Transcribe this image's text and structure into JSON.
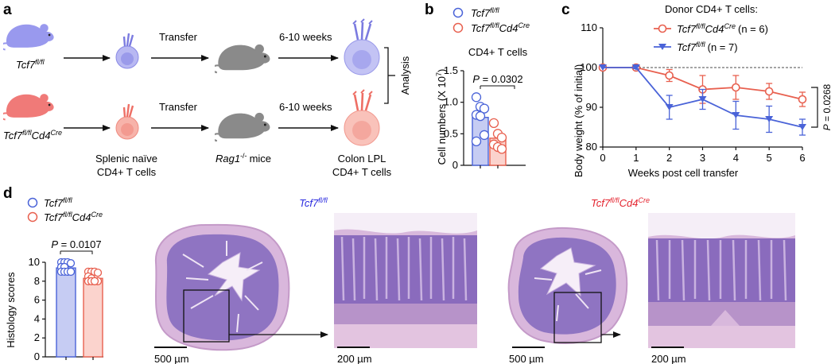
{
  "panel_labels": {
    "a": "a",
    "b": "b",
    "c": "c",
    "d": "d"
  },
  "panel_a": {
    "genotype_fl": "Tcf7",
    "genotype_fl_sup": "fl/fl",
    "genotype_cre": "Tcf7",
    "genotype_cre_sup": "fl/fl",
    "genotype_cre_gene": "Cd4",
    "genotype_cre_gene_sup": "Cre",
    "transfer_label_1": "Transfer",
    "transfer_label_2": "Transfer",
    "time_label_1": "6-10 weeks",
    "time_label_2": "6-10 weeks",
    "splenic_line1": "Splenic naïve",
    "splenic_line2": "CD4+ T cells",
    "rag_gene": "Rag1",
    "rag_sup": "-/-",
    "rag_suffix": "mice",
    "colon_line1": "Colon LPL",
    "colon_line2": "CD4+ T cells",
    "analysis": "Analysis"
  },
  "colors": {
    "blue": "#4a63d8",
    "red": "#e8604f",
    "mouse_blue": "#9999ee",
    "mouse_red": "#f07a78",
    "mouse_gray": "#8a8a8a",
    "tissue": "#c7a6d6",
    "tissue_dark": "#7d5aa8"
  },
  "panel_b": {
    "legend_fl": "Tcf7",
    "legend_fl_sup": "fl/fl",
    "legend_cre": "Tcf7",
    "legend_cre_sup": "fl/fl",
    "legend_cre_gene": "Cd4",
    "legend_cre_gene_sup": "Cre",
    "subtitle": "CD4+ T cells",
    "p_value": "P = 0.0302",
    "ylabel": "Cell numbers (X 10",
    "ylabel_sup": "7",
    "ylabel_end": ")"
  },
  "panel_c": {
    "title": "Donor CD4+ T cells:",
    "legend_cre": "Tcf7",
    "legend_cre_sup": "fl/fl",
    "legend_cre_gene": "Cd4",
    "legend_cre_gene_sup": "Cre",
    "legend_cre_n": "(n = 6)",
    "legend_fl": "Tcf7",
    "legend_fl_sup": "fl/fl",
    "legend_fl_n": "(n = 7)",
    "xlabel": "Weeks post cell transfer",
    "ylabel": "Body weight (% of initial)",
    "p_value": "P = 0.0268"
  },
  "panel_d": {
    "legend_fl": "Tcf7",
    "legend_fl_sup": "fl/fl",
    "legend_cre": "Tcf7",
    "legend_cre_sup": "fl/fl",
    "legend_cre_gene": "Cd4",
    "legend_cre_gene_sup": "Cre",
    "p_value": "P = 0.0107",
    "ylabel": "Histology scores",
    "title_fl": "Tcf7",
    "title_fl_sup": "fl/fl",
    "title_cre": "Tcf7",
    "title_cre_sup": "fl/fl",
    "title_cre_gene": "Cd4",
    "title_cre_gene_sup": "Cre",
    "scale_1": "500 µm",
    "scale_2": "200 µm",
    "scale_3": "500 µm",
    "scale_4": "200 µm"
  },
  "chart_data": [
    {
      "id": "b",
      "type": "bar",
      "title": "CD4+ T cells",
      "ylabel": "Cell numbers (X 10^7)",
      "ylim": [
        0,
        1.5
      ],
      "yticks": [
        0,
        0.5,
        1.0,
        1.5
      ],
      "ytick_labels": [
        "0",
        "0.5",
        "1.0",
        "1.5"
      ],
      "categories": [
        "Tcf7 fl/fl",
        "Tcf7 fl/fl Cd4 Cre"
      ],
      "series": [
        {
          "name": "Tcf7 fl/fl",
          "mean": 0.76,
          "sem": 0.09,
          "points": [
            1.08,
            0.93,
            0.9,
            0.8,
            0.78,
            0.48,
            0.38
          ]
        },
        {
          "name": "Tcf7 fl/fl Cd4 Cre",
          "mean": 0.43,
          "sem": 0.08,
          "points": [
            0.67,
            0.5,
            0.44,
            0.33,
            0.29,
            0.26
          ]
        }
      ]
    },
    {
      "id": "c",
      "type": "line",
      "xlabel": "Weeks post cell transfer",
      "ylabel": "Body weight (% of initial)",
      "xlim": [
        0,
        6
      ],
      "ylim": [
        80,
        110
      ],
      "xticks": [
        0,
        1,
        2,
        3,
        4,
        5,
        6
      ],
      "xtick_labels": [
        "0",
        "1",
        "2",
        "3",
        "4",
        "5",
        "6"
      ],
      "yticks": [
        80,
        90,
        100,
        110
      ],
      "ytick_labels": [
        "80",
        "90",
        "100",
        "110"
      ],
      "reference_line": 100,
      "x": [
        0,
        1,
        2,
        3,
        4,
        5,
        6
      ],
      "series": [
        {
          "name": "Tcf7 fl/fl Cd4 Cre (n = 6)",
          "values": [
            100,
            100,
            98,
            94.5,
            95,
            94,
            92
          ],
          "errors": [
            0,
            0.3,
            1.5,
            3.5,
            3.0,
            2.0,
            1.8
          ]
        },
        {
          "name": "Tcf7 fl/fl (n = 7)",
          "values": [
            100,
            100,
            90,
            92,
            88,
            87,
            85
          ],
          "errors": [
            0,
            0.3,
            3.0,
            2.5,
            3.5,
            3.3,
            2.0
          ]
        }
      ]
    },
    {
      "id": "d",
      "type": "bar",
      "ylabel": "Histology scores",
      "ylim": [
        0,
        10
      ],
      "yticks": [
        0,
        2,
        4,
        6,
        8,
        10
      ],
      "ytick_labels": [
        "0",
        "2",
        "4",
        "6",
        "8",
        "10"
      ],
      "categories": [
        "Tcf7 fl/fl",
        "Tcf7 fl/fl Cd4 Cre"
      ],
      "series": [
        {
          "name": "Tcf7 fl/fl",
          "mean": 9.4,
          "sem": 0.15,
          "points": [
            10,
            10,
            10,
            9.9,
            9.5,
            9.5,
            9.0,
            9.0,
            9.0,
            9.0,
            9.0,
            9.0
          ]
        },
        {
          "name": "Tcf7 fl/fl Cd4 Cre",
          "mean": 8.3,
          "sem": 0.4,
          "points": [
            9.0,
            9.0,
            9.0,
            8.9,
            8.5,
            8.3,
            8.0,
            8.0,
            8.0,
            8.0,
            8.0
          ]
        }
      ]
    }
  ]
}
